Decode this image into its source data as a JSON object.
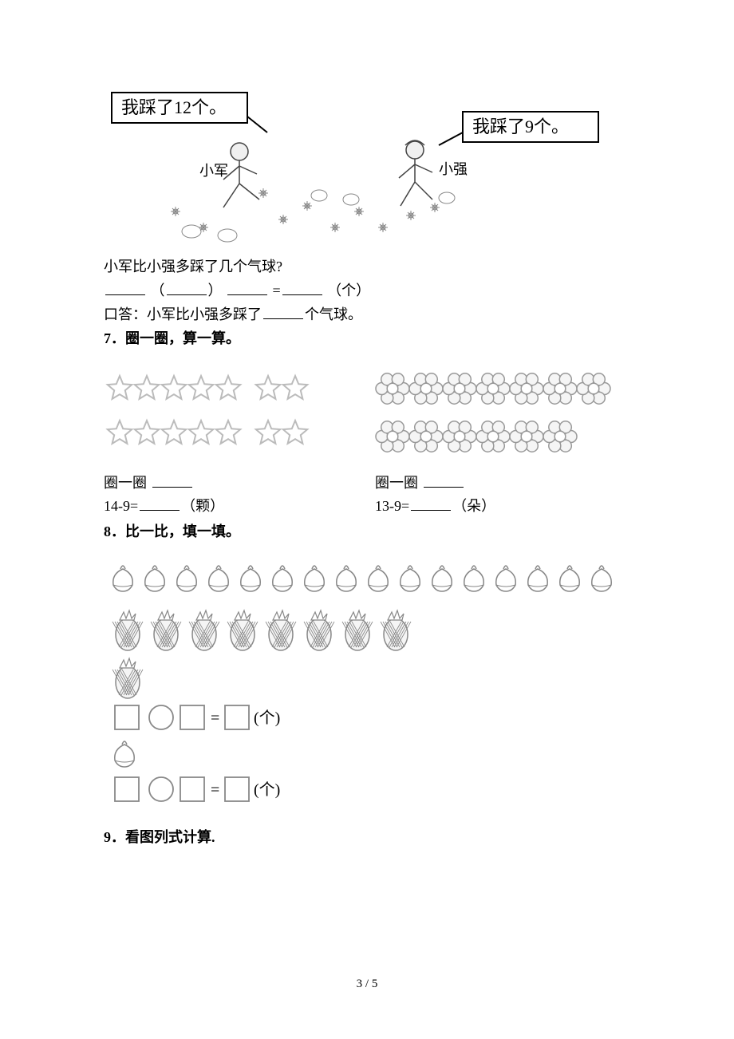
{
  "colors": {
    "text": "#000000",
    "bg": "#ffffff",
    "illus_line": "#444444",
    "illus_fill": "#f0f0f0",
    "star_stroke": "#bbbbbb",
    "flower_stroke": "#999999",
    "fruit_stroke": "#888888",
    "box_stroke": "#888888"
  },
  "q6": {
    "bubble_left": "我踩了12个。",
    "bubble_right": "我踩了9个。",
    "name_left": "小军",
    "name_right": "小强",
    "question": "小军比小强多踩了几个气球?",
    "eq_lparen": "（",
    "eq_rparen": "）",
    "eq_equals": " =",
    "eq_unit": "（个）",
    "answer_prefix": "口答：小军比小强多踩了",
    "answer_suffix": "个气球。"
  },
  "q7": {
    "number_label": "7．",
    "title": "圈一圈，算一算。",
    "left": {
      "rows": [
        7,
        7
      ],
      "circle_label": "圈一圈",
      "expr_prefix": "14-9=",
      "expr_unit": "（颗）"
    },
    "right": {
      "rows": [
        7,
        6
      ],
      "circle_label": "圈一圈",
      "expr_prefix": "13-9=",
      "expr_unit": "（朵）"
    }
  },
  "q8": {
    "number_label": "8．",
    "title": "比一比，填一填。",
    "peach_count": 16,
    "pineapple_rows": [
      8,
      1
    ],
    "eq_unit": "(个)"
  },
  "q9": {
    "number_label": "9．",
    "title": "看图列式计算."
  },
  "footer": "3 / 5"
}
